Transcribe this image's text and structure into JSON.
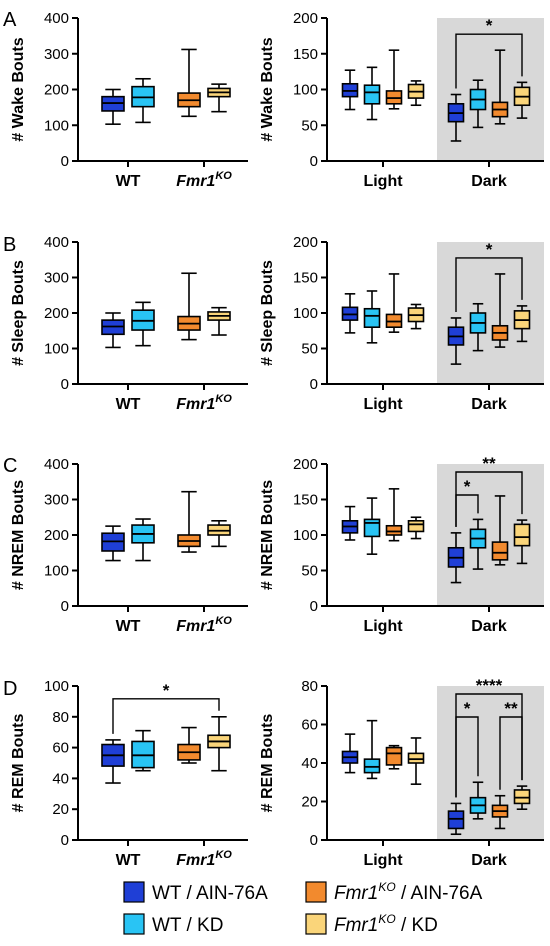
{
  "colors": {
    "WT_AIN": "#1f3fd6",
    "WT_KD": "#29c4f4",
    "KO_AIN": "#f28a2e",
    "KO_KD": "#fad57a",
    "shade": "#d8d8d8"
  },
  "legend": [
    {
      "pre": "WT / AIN-76A",
      "italic": "",
      "sup": "",
      "post": "",
      "color_key": "WT_AIN"
    },
    {
      "pre": "",
      "italic": "Fmr1",
      "sup": "KO",
      "post": " / AIN-76A",
      "color_key": "KO_AIN"
    },
    {
      "pre": "WT / KD",
      "italic": "",
      "sup": "",
      "post": "",
      "color_key": "WT_KD"
    },
    {
      "pre": "",
      "italic": "Fmr1",
      "sup": "KO",
      "post": " / KD",
      "color_key": "KO_KD"
    }
  ],
  "chart_data": [
    {
      "panel": "A",
      "type": "box",
      "ylabel": "# Wake Bouts",
      "ylim": [
        0,
        400
      ],
      "yticks": [
        0,
        100,
        200,
        300,
        400
      ],
      "groups": [
        {
          "label": "WT",
          "italic": false
        },
        {
          "label": "Fmr1",
          "sup": "KO",
          "italic": true
        }
      ],
      "boxes": [
        {
          "group": 0,
          "color_key": "WT_AIN",
          "min": 103,
          "q1": 140,
          "median": 162,
          "q3": 180,
          "max": 200
        },
        {
          "group": 0,
          "color_key": "WT_KD",
          "min": 108,
          "q1": 152,
          "median": 178,
          "q3": 208,
          "max": 230
        },
        {
          "group": 1,
          "color_key": "KO_AIN",
          "min": 125,
          "q1": 152,
          "median": 170,
          "q3": 190,
          "max": 312
        },
        {
          "group": 1,
          "color_key": "KO_KD",
          "min": 138,
          "q1": 180,
          "median": 192,
          "q3": 203,
          "max": 215
        }
      ],
      "sig": []
    },
    {
      "panel": "A",
      "type": "box",
      "ylabel": "# Wake Bouts",
      "ylim": [
        0,
        200
      ],
      "yticks": [
        0,
        50,
        100,
        150,
        200
      ],
      "groups": [
        {
          "label": "Light",
          "italic": false
        },
        {
          "label": "Dark",
          "italic": false,
          "shaded": true
        }
      ],
      "boxes": [
        {
          "group": 0,
          "color_key": "WT_AIN",
          "min": 72,
          "q1": 90,
          "median": 98,
          "q3": 108,
          "max": 127
        },
        {
          "group": 0,
          "color_key": "WT_KD",
          "min": 58,
          "q1": 80,
          "median": 96,
          "q3": 106,
          "max": 131
        },
        {
          "group": 0,
          "color_key": "KO_AIN",
          "min": 73,
          "q1": 80,
          "median": 88,
          "q3": 98,
          "max": 155
        },
        {
          "group": 0,
          "color_key": "KO_KD",
          "min": 78,
          "q1": 88,
          "median": 97,
          "q3": 107,
          "max": 112
        },
        {
          "group": 1,
          "color_key": "WT_AIN",
          "min": 28,
          "q1": 55,
          "median": 67,
          "q3": 80,
          "max": 93
        },
        {
          "group": 1,
          "color_key": "WT_KD",
          "min": 47,
          "q1": 72,
          "median": 86,
          "q3": 100,
          "max": 113
        },
        {
          "group": 1,
          "color_key": "KO_AIN",
          "min": 52,
          "q1": 62,
          "median": 72,
          "q3": 82,
          "max": 155
        },
        {
          "group": 1,
          "color_key": "KO_KD",
          "min": 60,
          "q1": 78,
          "median": 90,
          "q3": 103,
          "max": 110
        }
      ],
      "sig": [
        {
          "from": 4,
          "to": 7,
          "level": 0,
          "text": "*"
        }
      ]
    },
    {
      "panel": "B",
      "type": "box",
      "ylabel": "# Sleep Bouts",
      "ylim": [
        0,
        400
      ],
      "yticks": [
        0,
        100,
        200,
        300,
        400
      ],
      "groups": [
        {
          "label": "WT",
          "italic": false
        },
        {
          "label": "Fmr1",
          "sup": "KO",
          "italic": true
        }
      ],
      "boxes": [
        {
          "group": 0,
          "color_key": "WT_AIN",
          "min": 103,
          "q1": 140,
          "median": 162,
          "q3": 180,
          "max": 200
        },
        {
          "group": 0,
          "color_key": "WT_KD",
          "min": 108,
          "q1": 152,
          "median": 178,
          "q3": 208,
          "max": 230
        },
        {
          "group": 1,
          "color_key": "KO_AIN",
          "min": 125,
          "q1": 152,
          "median": 170,
          "q3": 190,
          "max": 312
        },
        {
          "group": 1,
          "color_key": "KO_KD",
          "min": 138,
          "q1": 180,
          "median": 192,
          "q3": 203,
          "max": 215
        }
      ],
      "sig": []
    },
    {
      "panel": "B",
      "type": "box",
      "ylabel": "# Sleep Bouts",
      "ylim": [
        0,
        200
      ],
      "yticks": [
        0,
        50,
        100,
        150,
        200
      ],
      "groups": [
        {
          "label": "Light",
          "italic": false
        },
        {
          "label": "Dark",
          "italic": false,
          "shaded": true
        }
      ],
      "boxes": [
        {
          "group": 0,
          "color_key": "WT_AIN",
          "min": 72,
          "q1": 90,
          "median": 98,
          "q3": 108,
          "max": 127
        },
        {
          "group": 0,
          "color_key": "WT_KD",
          "min": 58,
          "q1": 80,
          "median": 96,
          "q3": 106,
          "max": 131
        },
        {
          "group": 0,
          "color_key": "KO_AIN",
          "min": 73,
          "q1": 80,
          "median": 88,
          "q3": 98,
          "max": 155
        },
        {
          "group": 0,
          "color_key": "KO_KD",
          "min": 78,
          "q1": 88,
          "median": 97,
          "q3": 107,
          "max": 112
        },
        {
          "group": 1,
          "color_key": "WT_AIN",
          "min": 28,
          "q1": 55,
          "median": 67,
          "q3": 80,
          "max": 93
        },
        {
          "group": 1,
          "color_key": "WT_KD",
          "min": 47,
          "q1": 72,
          "median": 86,
          "q3": 100,
          "max": 113
        },
        {
          "group": 1,
          "color_key": "KO_AIN",
          "min": 52,
          "q1": 62,
          "median": 72,
          "q3": 82,
          "max": 155
        },
        {
          "group": 1,
          "color_key": "KO_KD",
          "min": 60,
          "q1": 78,
          "median": 90,
          "q3": 103,
          "max": 110
        }
      ],
      "sig": [
        {
          "from": 4,
          "to": 7,
          "level": 0,
          "text": "*"
        }
      ]
    },
    {
      "panel": "C",
      "type": "box",
      "ylabel": "# NREM Bouts",
      "ylim": [
        0,
        400
      ],
      "yticks": [
        0,
        100,
        200,
        300,
        400
      ],
      "groups": [
        {
          "label": "WT",
          "italic": false
        },
        {
          "label": "Fmr1",
          "sup": "KO",
          "italic": true
        }
      ],
      "boxes": [
        {
          "group": 0,
          "color_key": "WT_AIN",
          "min": 128,
          "q1": 155,
          "median": 182,
          "q3": 205,
          "max": 225
        },
        {
          "group": 0,
          "color_key": "WT_KD",
          "min": 128,
          "q1": 178,
          "median": 203,
          "q3": 228,
          "max": 245
        },
        {
          "group": 1,
          "color_key": "KO_AIN",
          "min": 152,
          "q1": 168,
          "median": 183,
          "q3": 200,
          "max": 322
        },
        {
          "group": 1,
          "color_key": "KO_KD",
          "min": 168,
          "q1": 200,
          "median": 212,
          "q3": 228,
          "max": 240
        }
      ],
      "sig": []
    },
    {
      "panel": "C",
      "type": "box",
      "ylabel": "# NREM Bouts",
      "ylim": [
        0,
        200
      ],
      "yticks": [
        0,
        50,
        100,
        150,
        200
      ],
      "groups": [
        {
          "label": "Light",
          "italic": false
        },
        {
          "label": "Dark",
          "italic": false,
          "shaded": true
        }
      ],
      "boxes": [
        {
          "group": 0,
          "color_key": "WT_AIN",
          "min": 93,
          "q1": 103,
          "median": 112,
          "q3": 120,
          "max": 140
        },
        {
          "group": 0,
          "color_key": "WT_KD",
          "min": 73,
          "q1": 98,
          "median": 117,
          "q3": 122,
          "max": 152
        },
        {
          "group": 0,
          "color_key": "KO_AIN",
          "min": 92,
          "q1": 100,
          "median": 105,
          "q3": 113,
          "max": 165
        },
        {
          "group": 0,
          "color_key": "KO_KD",
          "min": 95,
          "q1": 105,
          "median": 115,
          "q3": 120,
          "max": 125
        },
        {
          "group": 1,
          "color_key": "WT_AIN",
          "min": 33,
          "q1": 55,
          "median": 68,
          "q3": 82,
          "max": 103
        },
        {
          "group": 1,
          "color_key": "WT_KD",
          "min": 52,
          "q1": 82,
          "median": 95,
          "q3": 108,
          "max": 122
        },
        {
          "group": 1,
          "color_key": "KO_AIN",
          "min": 58,
          "q1": 65,
          "median": 75,
          "q3": 90,
          "max": 155
        },
        {
          "group": 1,
          "color_key": "KO_KD",
          "min": 60,
          "q1": 85,
          "median": 97,
          "q3": 115,
          "max": 121
        }
      ],
      "sig": [
        {
          "from": 4,
          "to": 5,
          "level": 0,
          "text": "*"
        },
        {
          "from": 4,
          "to": 7,
          "level": 1,
          "text": "**"
        }
      ]
    },
    {
      "panel": "D",
      "type": "box",
      "ylabel": "# REM Bouts",
      "ylim": [
        0,
        100
      ],
      "yticks": [
        0,
        20,
        40,
        60,
        80,
        100
      ],
      "groups": [
        {
          "label": "WT",
          "italic": false
        },
        {
          "label": "Fmr1",
          "sup": "KO",
          "italic": true
        }
      ],
      "boxes": [
        {
          "group": 0,
          "color_key": "WT_AIN",
          "min": 37,
          "q1": 48,
          "median": 55,
          "q3": 62,
          "max": 65
        },
        {
          "group": 0,
          "color_key": "WT_KD",
          "min": 45,
          "q1": 47,
          "median": 55,
          "q3": 64,
          "max": 71
        },
        {
          "group": 1,
          "color_key": "KO_AIN",
          "min": 50,
          "q1": 52,
          "median": 57,
          "q3": 62,
          "max": 73
        },
        {
          "group": 1,
          "color_key": "KO_KD",
          "min": 45,
          "q1": 60,
          "median": 64,
          "q3": 68,
          "max": 80
        }
      ],
      "sig": [
        {
          "from": 0,
          "to": 3,
          "level": 0,
          "text": "*"
        }
      ]
    },
    {
      "panel": "D",
      "type": "box",
      "ylabel": "# REM Bouts",
      "ylim": [
        0,
        80
      ],
      "yticks": [
        0,
        20,
        40,
        60,
        80
      ],
      "groups": [
        {
          "label": "Light",
          "italic": false
        },
        {
          "label": "Dark",
          "italic": false,
          "shaded": true
        }
      ],
      "boxes": [
        {
          "group": 0,
          "color_key": "WT_AIN",
          "min": 35,
          "q1": 40,
          "median": 43,
          "q3": 46,
          "max": 55
        },
        {
          "group": 0,
          "color_key": "WT_KD",
          "min": 32,
          "q1": 35,
          "median": 38,
          "q3": 42,
          "max": 62
        },
        {
          "group": 0,
          "color_key": "KO_AIN",
          "min": 37,
          "q1": 39,
          "median": 45,
          "q3": 48,
          "max": 49
        },
        {
          "group": 0,
          "color_key": "KO_KD",
          "min": 29,
          "q1": 40,
          "median": 42,
          "q3": 45,
          "max": 53
        },
        {
          "group": 1,
          "color_key": "WT_AIN",
          "min": 3,
          "q1": 6,
          "median": 11,
          "q3": 15,
          "max": 19
        },
        {
          "group": 1,
          "color_key": "WT_KD",
          "min": 11,
          "q1": 14,
          "median": 18,
          "q3": 22,
          "max": 30
        },
        {
          "group": 1,
          "color_key": "KO_AIN",
          "min": 6,
          "q1": 12,
          "median": 15,
          "q3": 18,
          "max": 23
        },
        {
          "group": 1,
          "color_key": "KO_KD",
          "min": 16,
          "q1": 19,
          "median": 22,
          "q3": 26,
          "max": 28
        }
      ],
      "sig": [
        {
          "from": 4,
          "to": 5,
          "level": 0,
          "text": "*"
        },
        {
          "from": 6,
          "to": 7,
          "level": 0,
          "text": "**"
        },
        {
          "from": 4,
          "to": 7,
          "level": 1,
          "text": "****"
        }
      ]
    }
  ]
}
